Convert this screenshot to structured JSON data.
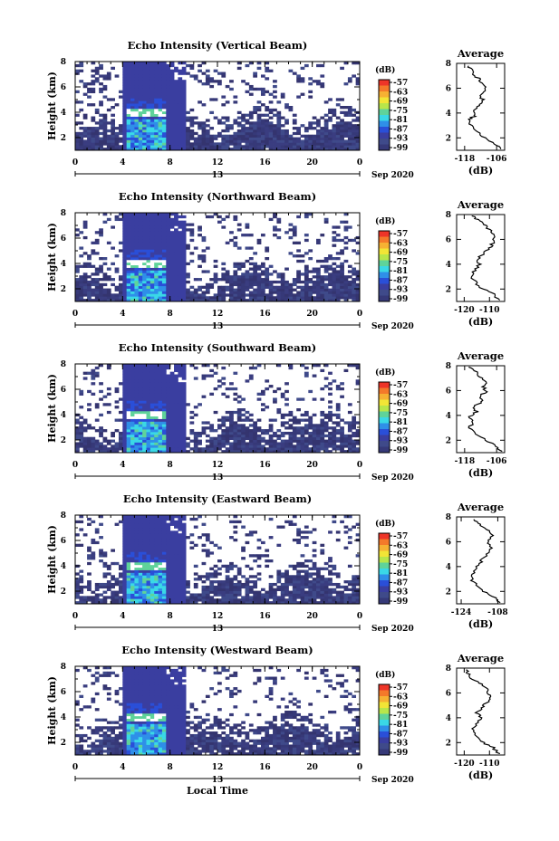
{
  "chart_data": [
    {
      "type": "heatmap",
      "title": "Echo Intensity (Vertical Beam)",
      "ylabel": "Height (km)",
      "ylim": [
        1,
        8
      ],
      "yticks": [
        "2",
        "4",
        "6",
        "8"
      ],
      "xlim": [
        0,
        24
      ],
      "xticks": [
        "0",
        "4",
        "8",
        "12",
        "16",
        "20",
        "0"
      ],
      "date_label": "13",
      "month_year": "Sep 2020",
      "colorbar_unit": "(dB)",
      "colorbar_labels": [
        "-57",
        "-63",
        "-69",
        "-75",
        "-81",
        "-87",
        "-93",
        "-99"
      ],
      "colorbar_colors": [
        "#ee3528",
        "#f4792a",
        "#f6b133",
        "#f2e536",
        "#b8e64a",
        "#5fd39a",
        "#3ad8e6",
        "#2f8fe8",
        "#2a4fd8",
        "#3a3ea0",
        "#3f4a8a",
        "#363978"
      ],
      "profile": {
        "title": "Average",
        "xlabel": "(dB)",
        "xticks": [
          "-118",
          "-106"
        ],
        "xlim": [
          -121,
          -103
        ],
        "yticks": [
          "2",
          "4",
          "6",
          "8"
        ],
        "ylim": [
          1,
          8
        ],
        "points": [
          [
            -104.5,
            1.1
          ],
          [
            -106.5,
            1.5
          ],
          [
            -110.5,
            2.0
          ],
          [
            -113.5,
            2.5
          ],
          [
            -115.5,
            3.0
          ],
          [
            -116.5,
            3.5
          ],
          [
            -114.0,
            3.8
          ],
          [
            -115.0,
            4.2
          ],
          [
            -113.0,
            4.6
          ],
          [
            -111.0,
            5.0
          ],
          [
            -112.0,
            5.4
          ],
          [
            -110.0,
            5.8
          ],
          [
            -111.0,
            6.2
          ],
          [
            -112.0,
            6.6
          ],
          [
            -114.0,
            7.0
          ],
          [
            -115.5,
            7.4
          ],
          [
            -116.5,
            7.8
          ]
        ]
      }
    },
    {
      "type": "heatmap",
      "title": "Echo Intensity (Northward Beam)",
      "ylabel": "Height (km)",
      "ylim": [
        1,
        8
      ],
      "yticks": [
        "2",
        "4",
        "6",
        "8"
      ],
      "xlim": [
        0,
        24
      ],
      "xticks": [
        "0",
        "4",
        "8",
        "12",
        "16",
        "20",
        "0"
      ],
      "date_label": "13",
      "month_year": "Sep 2020",
      "colorbar_unit": "(dB)",
      "colorbar_labels": [
        "-57",
        "-63",
        "-69",
        "-75",
        "-81",
        "-87",
        "-93",
        "-99"
      ],
      "colorbar_colors": [
        "#ee3528",
        "#f4792a",
        "#f6b133",
        "#f2e536",
        "#b8e64a",
        "#5fd39a",
        "#3ad8e6",
        "#2f8fe8",
        "#2a4fd8",
        "#3a3ea0",
        "#3f4a8a",
        "#363978"
      ],
      "profile": {
        "title": "Average",
        "xlabel": "(dB)",
        "xticks": [
          "-120",
          "-110"
        ],
        "xlim": [
          -123,
          -104
        ],
        "yticks": [
          "2",
          "4",
          "6",
          "8"
        ],
        "ylim": [
          1,
          8
        ],
        "points": [
          [
            -106.0,
            1.1
          ],
          [
            -108.5,
            1.6
          ],
          [
            -112.5,
            2.0
          ],
          [
            -115.5,
            2.5
          ],
          [
            -117.0,
            3.0
          ],
          [
            -116.0,
            3.5
          ],
          [
            -114.0,
            4.0
          ],
          [
            -115.0,
            4.4
          ],
          [
            -112.5,
            4.8
          ],
          [
            -110.5,
            5.2
          ],
          [
            -109.0,
            5.6
          ],
          [
            -108.0,
            6.0
          ],
          [
            -109.0,
            6.4
          ],
          [
            -110.0,
            6.8
          ],
          [
            -112.0,
            7.2
          ],
          [
            -115.0,
            7.6
          ],
          [
            -117.0,
            7.9
          ]
        ]
      }
    },
    {
      "type": "heatmap",
      "title": "Echo Intensity (Southward Beam)",
      "ylabel": "Height (km)",
      "ylim": [
        1,
        8
      ],
      "yticks": [
        "2",
        "4",
        "6",
        "8"
      ],
      "xlim": [
        0,
        24
      ],
      "xticks": [
        "0",
        "4",
        "8",
        "12",
        "16",
        "20",
        "0"
      ],
      "date_label": "13",
      "month_year": "Sep 2020",
      "colorbar_unit": "(dB)",
      "colorbar_labels": [
        "-57",
        "-63",
        "-69",
        "-75",
        "-81",
        "-87",
        "-93",
        "-99"
      ],
      "colorbar_colors": [
        "#ee3528",
        "#f4792a",
        "#f6b133",
        "#f2e536",
        "#b8e64a",
        "#5fd39a",
        "#3ad8e6",
        "#2f8fe8",
        "#2a4fd8",
        "#3a3ea0",
        "#3f4a8a",
        "#363978"
      ],
      "profile": {
        "title": "Average",
        "xlabel": "(dB)",
        "xticks": [
          "-118",
          "-106"
        ],
        "xlim": [
          -121,
          -103
        ],
        "yticks": [
          "2",
          "4",
          "6",
          "8"
        ],
        "ylim": [
          1,
          8
        ],
        "points": [
          [
            -104.0,
            1.1
          ],
          [
            -106.5,
            1.5
          ],
          [
            -110.0,
            2.0
          ],
          [
            -113.5,
            2.5
          ],
          [
            -116.0,
            3.0
          ],
          [
            -115.0,
            3.5
          ],
          [
            -116.5,
            3.9
          ],
          [
            -113.5,
            4.3
          ],
          [
            -114.5,
            4.7
          ],
          [
            -111.5,
            5.1
          ],
          [
            -112.5,
            5.5
          ],
          [
            -110.0,
            5.9
          ],
          [
            -111.0,
            6.3
          ],
          [
            -109.5,
            6.7
          ],
          [
            -112.0,
            7.1
          ],
          [
            -114.0,
            7.5
          ],
          [
            -116.5,
            7.9
          ]
        ]
      }
    },
    {
      "type": "heatmap",
      "title": "Echo Intensity (Eastward Beam)",
      "ylabel": "Height (km)",
      "ylim": [
        1,
        8
      ],
      "yticks": [
        "2",
        "4",
        "6",
        "8"
      ],
      "xlim": [
        0,
        24
      ],
      "xticks": [
        "0",
        "4",
        "8",
        "12",
        "16",
        "20",
        "0"
      ],
      "date_label": "13",
      "month_year": "Sep 2020",
      "colorbar_unit": "(dB)",
      "colorbar_labels": [
        "-57",
        "-63",
        "-69",
        "-75",
        "-81",
        "-87",
        "-93",
        "-99"
      ],
      "colorbar_colors": [
        "#ee3528",
        "#f4792a",
        "#f6b133",
        "#f2e536",
        "#b8e64a",
        "#5fd39a",
        "#3ad8e6",
        "#2f8fe8",
        "#2a4fd8",
        "#3a3ea0",
        "#3f4a8a",
        "#363978"
      ],
      "profile": {
        "title": "Average",
        "xlabel": "(dB)",
        "xticks": [
          "-124",
          "-108"
        ],
        "xlim": [
          -126,
          -105
        ],
        "yticks": [
          "2",
          "4",
          "6",
          "8"
        ],
        "ylim": [
          1,
          8
        ],
        "points": [
          [
            -107.0,
            1.1
          ],
          [
            -110.0,
            1.6
          ],
          [
            -114.0,
            2.0
          ],
          [
            -117.5,
            2.5
          ],
          [
            -119.5,
            3.0
          ],
          [
            -118.5,
            3.5
          ],
          [
            -117.0,
            4.0
          ],
          [
            -115.0,
            4.5
          ],
          [
            -113.0,
            5.0
          ],
          [
            -111.0,
            5.5
          ],
          [
            -112.0,
            6.0
          ],
          [
            -110.0,
            6.5
          ],
          [
            -113.0,
            7.0
          ],
          [
            -116.0,
            7.4
          ],
          [
            -118.5,
            7.8
          ]
        ]
      }
    },
    {
      "type": "heatmap",
      "title": "Echo Intensity (Westward Beam)",
      "ylabel": "Height (km)",
      "ylim": [
        1,
        8
      ],
      "yticks": [
        "2",
        "4",
        "6",
        "8"
      ],
      "xlim": [
        0,
        24
      ],
      "xticks": [
        "0",
        "4",
        "8",
        "12",
        "16",
        "20",
        "0"
      ],
      "date_label": "13",
      "month_year": "Sep 2020",
      "xlabel": "Local Time",
      "colorbar_unit": "(dB)",
      "colorbar_labels": [
        "-57",
        "-63",
        "-69",
        "-75",
        "-81",
        "-87",
        "-93",
        "-99"
      ],
      "colorbar_colors": [
        "#ee3528",
        "#f4792a",
        "#f6b133",
        "#f2e536",
        "#b8e64a",
        "#5fd39a",
        "#3ad8e6",
        "#2f8fe8",
        "#2a4fd8",
        "#3a3ea0",
        "#3f4a8a",
        "#363978"
      ],
      "profile": {
        "title": "Average",
        "xlabel": "(dB)",
        "xticks": [
          "-120",
          "-110"
        ],
        "xlim": [
          -123,
          -104
        ],
        "yticks": [
          "2",
          "4",
          "6",
          "8"
        ],
        "ylim": [
          1,
          8
        ],
        "points": [
          [
            -106.0,
            1.1
          ],
          [
            -108.5,
            1.6
          ],
          [
            -112.5,
            2.0
          ],
          [
            -115.5,
            2.5
          ],
          [
            -116.5,
            3.0
          ],
          [
            -115.0,
            3.5
          ],
          [
            -113.5,
            4.0
          ],
          [
            -115.0,
            4.4
          ],
          [
            -113.0,
            4.8
          ],
          [
            -111.0,
            5.2
          ],
          [
            -109.5,
            5.6
          ],
          [
            -110.5,
            6.0
          ],
          [
            -111.5,
            6.4
          ],
          [
            -114.0,
            6.8
          ],
          [
            -117.0,
            7.2
          ],
          [
            -118.5,
            7.6
          ],
          [
            -119.0,
            7.9
          ]
        ]
      }
    }
  ]
}
